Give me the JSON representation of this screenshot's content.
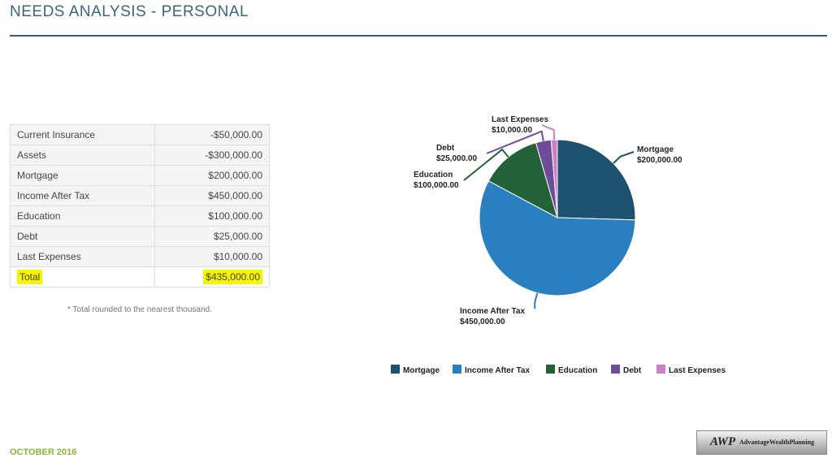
{
  "header": {
    "title": "NEEDS ANALYSIS - PERSONAL"
  },
  "table": {
    "rows": [
      [
        "Current Insurance",
        "-$50,000.00"
      ],
      [
        "Assets",
        "-$300,000.00"
      ],
      [
        "Mortgage",
        "$200,000.00"
      ],
      [
        "Income After Tax",
        "$450,000.00"
      ],
      [
        "Education",
        "$100,000.00"
      ],
      [
        "Debt",
        "$25,000.00"
      ],
      [
        "Last Expenses",
        "$10,000.00"
      ],
      [
        "Total",
        "$435,000.00"
      ]
    ]
  },
  "note": "* Total rounded to the nearest thousand.",
  "chart_data": {
    "type": "pie",
    "categories": [
      "Mortgage",
      "Income After Tax",
      "Education",
      "Debt",
      "Last Expenses"
    ],
    "values": [
      200000,
      450000,
      100000,
      25000,
      10000
    ],
    "value_labels": [
      "$200,000.00",
      "$450,000.00",
      "$100,000.00",
      "$25,000.00",
      "$10,000.00"
    ],
    "colors": [
      "#1d5170",
      "#2a7fc1",
      "#236138",
      "#6f4b9c",
      "#cc7fc4"
    ]
  },
  "footer": {
    "date": "OCTOBER 2016",
    "logo_mark": "AWP",
    "logo_text": "AdvantageWealthPlanning"
  }
}
